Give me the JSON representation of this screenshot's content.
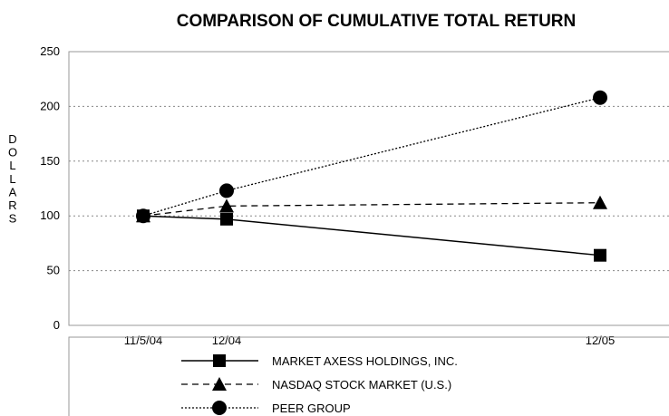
{
  "chart_data": {
    "type": "line",
    "title": "COMPARISON OF CUMULATIVE TOTAL RETURN",
    "ylabel": "DOLLARS",
    "xlabel": "",
    "categories": [
      "11/5/04",
      "12/04",
      "12/05"
    ],
    "x_positions_note_free": true,
    "ylim": [
      0,
      250
    ],
    "yticks": [
      0,
      50,
      100,
      150,
      200,
      250
    ],
    "grid": "horizontal dotted",
    "legend_position": "bottom",
    "series": [
      {
        "name": "MARKET AXESS HOLDINGS, INC.",
        "values": [
          100,
          97,
          64
        ],
        "marker": "square",
        "line": "solid"
      },
      {
        "name": "NASDAQ STOCK MARKET (U.S.)",
        "values": [
          100,
          109,
          112
        ],
        "marker": "triangle",
        "line": "dashed"
      },
      {
        "name": "PEER GROUP",
        "values": [
          100,
          123,
          208
        ],
        "marker": "circle",
        "line": "dotted"
      }
    ],
    "colors": {
      "line": "#000000",
      "grid": "#888888",
      "frame": "#999999"
    }
  }
}
